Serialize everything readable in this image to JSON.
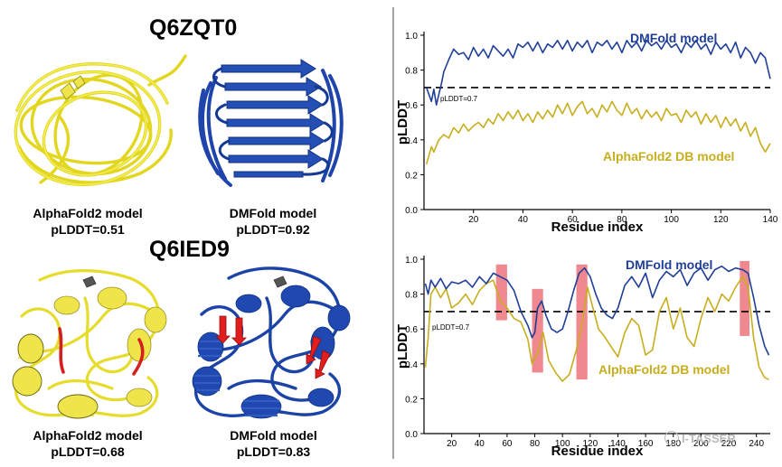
{
  "top": {
    "title": "Q6ZQT0",
    "left_caption": [
      "AlphaFold2 model",
      "pLDDT=0.51"
    ],
    "right_caption": [
      "DMFold model",
      "pLDDT=0.92"
    ]
  },
  "bottom": {
    "title": "Q6IED9",
    "left_caption": [
      "AlphaFold2 model",
      "pLDDT=0.68"
    ],
    "right_caption": [
      "DMFold model",
      "pLDDT=0.83"
    ]
  },
  "watermark": "I-TASSER",
  "colors": {
    "dmfold": "#1f3f98",
    "alphafold": "#c8ad1d",
    "highlight": "#ef7f86",
    "alphafold_structure": "#f0ea46",
    "dmfold_structure": "#1b42a3",
    "strand_highlight": "#e02020"
  },
  "chart_data": [
    {
      "type": "line",
      "title": "",
      "xlabel": "Residue index",
      "ylabel": "pLDDT",
      "xlim": [
        0,
        140
      ],
      "ylim": [
        0,
        1.0
      ],
      "xticks": [
        20,
        40,
        60,
        80,
        100,
        120,
        140
      ],
      "yticks": [
        0,
        0.2,
        0.4,
        0.6,
        0.8,
        1.0
      ],
      "threshold": {
        "value": 0.7,
        "label": "pLDDT=0.7"
      },
      "series": [
        {
          "name": "DMFold model",
          "x": [
            1,
            2,
            3,
            4,
            5,
            6,
            7,
            8,
            10,
            12,
            14,
            16,
            18,
            20,
            22,
            24,
            26,
            28,
            30,
            32,
            34,
            36,
            38,
            40,
            42,
            44,
            46,
            48,
            50,
            52,
            54,
            56,
            58,
            60,
            62,
            64,
            66,
            68,
            70,
            72,
            74,
            76,
            78,
            80,
            82,
            84,
            86,
            88,
            90,
            92,
            94,
            96,
            98,
            100,
            102,
            104,
            106,
            108,
            110,
            112,
            114,
            116,
            118,
            120,
            122,
            124,
            126,
            128,
            130,
            132,
            134,
            136,
            138,
            140
          ],
          "values": [
            0.7,
            0.66,
            0.62,
            0.69,
            0.6,
            0.66,
            0.72,
            0.79,
            0.86,
            0.92,
            0.89,
            0.9,
            0.86,
            0.93,
            0.88,
            0.92,
            0.87,
            0.94,
            0.91,
            0.88,
            0.92,
            0.87,
            0.95,
            0.93,
            0.96,
            0.91,
            0.96,
            0.9,
            0.95,
            0.93,
            0.97,
            0.92,
            0.97,
            0.91,
            0.96,
            0.93,
            0.97,
            0.9,
            0.96,
            0.94,
            0.97,
            0.92,
            0.96,
            0.9,
            0.97,
            0.93,
            0.96,
            0.91,
            0.97,
            0.94,
            0.96,
            0.92,
            0.97,
            0.93,
            0.95,
            0.9,
            0.96,
            0.93,
            0.97,
            0.92,
            0.95,
            0.89,
            0.96,
            0.92,
            0.95,
            0.9,
            0.96,
            0.87,
            0.93,
            0.9,
            0.84,
            0.9,
            0.87,
            0.75
          ]
        },
        {
          "name": "AlphaFold2 DB model",
          "x": [
            1,
            2,
            3,
            4,
            6,
            8,
            10,
            12,
            14,
            16,
            18,
            20,
            22,
            24,
            26,
            28,
            30,
            32,
            34,
            36,
            38,
            40,
            42,
            44,
            46,
            48,
            50,
            52,
            54,
            56,
            58,
            60,
            62,
            64,
            66,
            68,
            70,
            72,
            74,
            76,
            78,
            80,
            82,
            84,
            86,
            88,
            90,
            92,
            94,
            96,
            98,
            100,
            102,
            104,
            106,
            108,
            110,
            112,
            114,
            116,
            118,
            120,
            122,
            124,
            126,
            128,
            130,
            132,
            134,
            136,
            138,
            140
          ],
          "values": [
            0.26,
            0.31,
            0.36,
            0.33,
            0.4,
            0.43,
            0.41,
            0.47,
            0.44,
            0.49,
            0.45,
            0.48,
            0.5,
            0.47,
            0.52,
            0.49,
            0.55,
            0.51,
            0.56,
            0.52,
            0.57,
            0.51,
            0.55,
            0.5,
            0.56,
            0.52,
            0.57,
            0.53,
            0.6,
            0.55,
            0.61,
            0.54,
            0.59,
            0.62,
            0.55,
            0.58,
            0.53,
            0.6,
            0.56,
            0.62,
            0.57,
            0.54,
            0.61,
            0.55,
            0.58,
            0.52,
            0.57,
            0.53,
            0.56,
            0.51,
            0.58,
            0.54,
            0.55,
            0.5,
            0.57,
            0.53,
            0.56,
            0.49,
            0.55,
            0.5,
            0.54,
            0.47,
            0.53,
            0.48,
            0.52,
            0.45,
            0.5,
            0.42,
            0.47,
            0.38,
            0.33,
            0.38
          ]
        }
      ]
    },
    {
      "type": "line",
      "title": "",
      "xlabel": "Residue index",
      "ylabel": "pLDDT",
      "xlim": [
        0,
        250
      ],
      "ylim": [
        0,
        1.0
      ],
      "xticks": [
        20,
        40,
        60,
        80,
        100,
        120,
        140,
        160,
        180,
        200,
        220,
        240
      ],
      "yticks": [
        0,
        0.2,
        0.4,
        0.6,
        0.8,
        1.0
      ],
      "threshold": {
        "value": 0.7,
        "label": "pLDDT=0.7"
      },
      "highlight_ranges": [
        [
          52,
          60
        ],
        [
          78,
          86
        ],
        [
          110,
          118
        ],
        [
          228,
          235
        ]
      ],
      "highlight_y": [
        [
          0.65,
          0.97
        ],
        [
          0.35,
          0.83
        ],
        [
          0.31,
          0.97
        ],
        [
          0.56,
          0.99
        ]
      ],
      "series": [
        {
          "name": "DMFold model",
          "x": [
            1,
            3,
            5,
            8,
            12,
            16,
            20,
            25,
            30,
            35,
            40,
            45,
            50,
            55,
            60,
            65,
            70,
            75,
            78,
            80,
            82,
            85,
            88,
            92,
            96,
            100,
            104,
            108,
            112,
            116,
            120,
            124,
            128,
            132,
            136,
            140,
            145,
            150,
            155,
            160,
            165,
            170,
            175,
            180,
            185,
            190,
            195,
            200,
            205,
            210,
            215,
            220,
            225,
            230,
            234,
            238,
            242,
            246,
            249
          ],
          "values": [
            0.86,
            0.8,
            0.88,
            0.84,
            0.89,
            0.83,
            0.87,
            0.86,
            0.88,
            0.84,
            0.9,
            0.86,
            0.92,
            0.9,
            0.88,
            0.82,
            0.7,
            0.62,
            0.55,
            0.58,
            0.72,
            0.76,
            0.68,
            0.6,
            0.58,
            0.6,
            0.7,
            0.82,
            0.92,
            0.95,
            0.9,
            0.8,
            0.72,
            0.68,
            0.66,
            0.72,
            0.85,
            0.9,
            0.84,
            0.92,
            0.78,
            0.88,
            0.93,
            0.9,
            0.94,
            0.85,
            0.92,
            0.95,
            0.88,
            0.94,
            0.96,
            0.93,
            0.95,
            0.94,
            0.92,
            0.78,
            0.62,
            0.5,
            0.45
          ]
        },
        {
          "name": "AlphaFold2 DB model",
          "x": [
            1,
            3,
            5,
            8,
            12,
            16,
            20,
            25,
            30,
            35,
            40,
            45,
            50,
            55,
            60,
            65,
            70,
            75,
            78,
            82,
            86,
            90,
            95,
            100,
            105,
            110,
            114,
            118,
            122,
            126,
            130,
            135,
            140,
            145,
            150,
            155,
            160,
            165,
            170,
            175,
            180,
            185,
            190,
            195,
            200,
            205,
            210,
            215,
            220,
            225,
            230,
            234,
            238,
            242,
            246,
            249
          ],
          "values": [
            0.38,
            0.55,
            0.8,
            0.84,
            0.78,
            0.83,
            0.72,
            0.75,
            0.8,
            0.74,
            0.82,
            0.86,
            0.88,
            0.76,
            0.72,
            0.66,
            0.64,
            0.54,
            0.4,
            0.46,
            0.58,
            0.42,
            0.35,
            0.3,
            0.34,
            0.48,
            0.62,
            0.84,
            0.72,
            0.6,
            0.56,
            0.5,
            0.44,
            0.58,
            0.66,
            0.62,
            0.45,
            0.48,
            0.7,
            0.78,
            0.6,
            0.72,
            0.55,
            0.5,
            0.66,
            0.78,
            0.7,
            0.8,
            0.76,
            0.84,
            0.9,
            0.84,
            0.55,
            0.38,
            0.32,
            0.31
          ]
        }
      ]
    }
  ]
}
